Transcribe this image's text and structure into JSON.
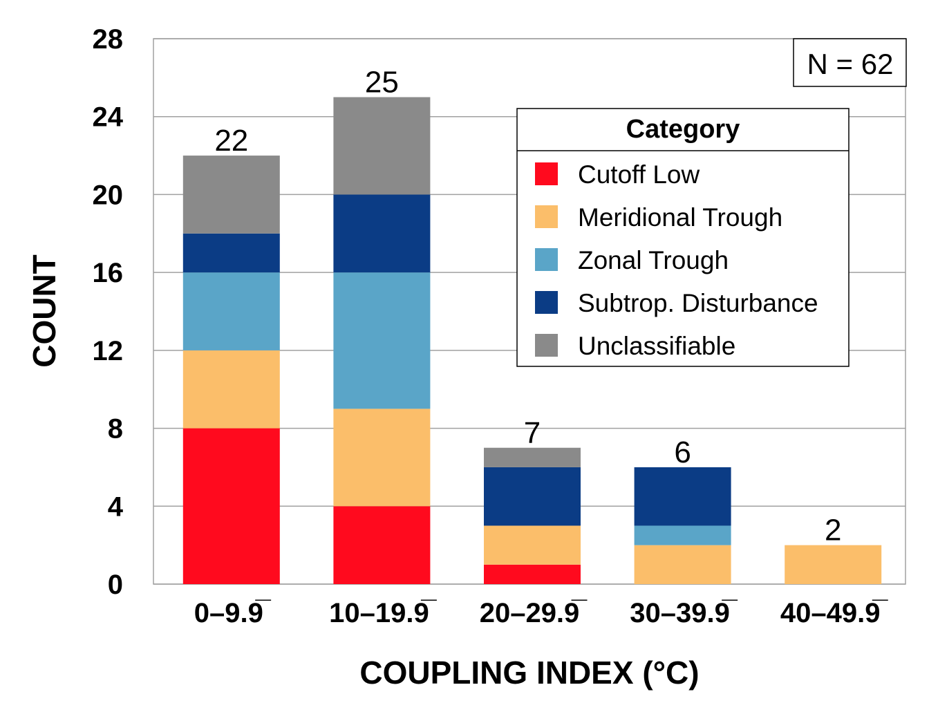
{
  "chart_data": {
    "type": "bar",
    "stacked": true,
    "categories": [
      "0–9.9̅",
      "10–19.9̅",
      "20–29.9̅",
      "30–39.9̅",
      "40–49.9̅"
    ],
    "series": [
      {
        "name": "Cutoff Low",
        "color": "#ff0a1e",
        "values": [
          8,
          4,
          1,
          0,
          0
        ]
      },
      {
        "name": "Meridional Trough",
        "color": "#fbbe6a",
        "values": [
          4,
          5,
          2,
          2,
          2
        ]
      },
      {
        "name": "Zonal Trough",
        "color": "#5aa5c8",
        "values": [
          4,
          7,
          0,
          1,
          0
        ]
      },
      {
        "name": "Subtrop. Disturbance",
        "color": "#0b3c85",
        "values": [
          2,
          4,
          3,
          3,
          0
        ]
      },
      {
        "name": "Unclassifiable",
        "color": "#8a8a8a",
        "values": [
          4,
          5,
          1,
          0,
          0
        ]
      }
    ],
    "totals": [
      "22",
      "25",
      "7",
      "6",
      "2"
    ],
    "xlabel": "COUPLING INDEX (°C)",
    "ylabel": "COUNT",
    "ylim": [
      0,
      28
    ],
    "yticks": [
      "0",
      "4",
      "8",
      "12",
      "16",
      "20",
      "24",
      "28"
    ],
    "grid": true,
    "legend": {
      "title": "Category",
      "placement": "top-right"
    },
    "annotation": "N = 62"
  }
}
